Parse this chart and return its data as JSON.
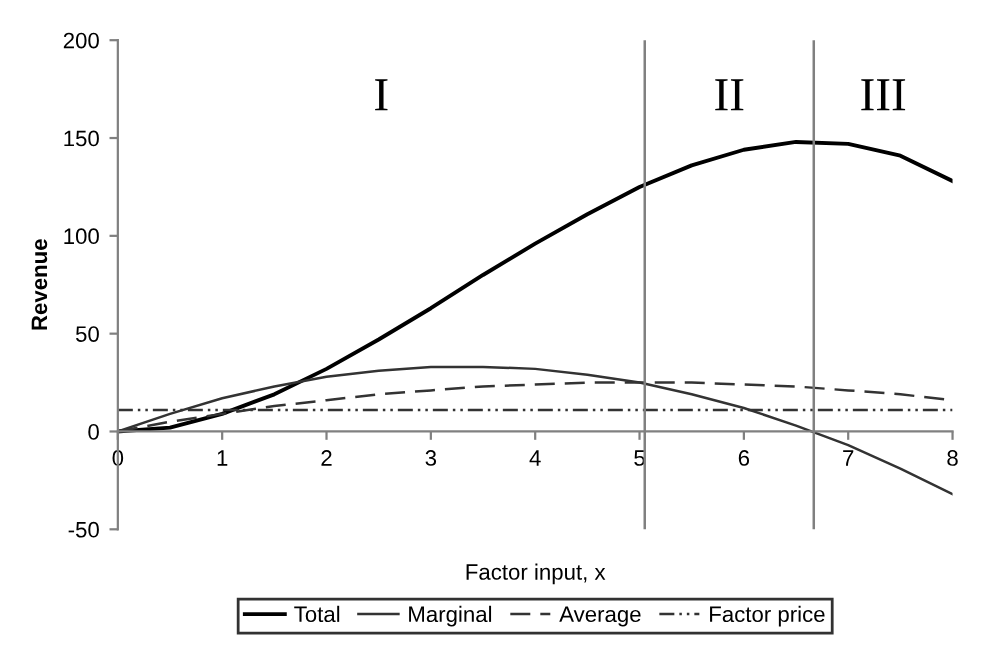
{
  "chart_data": {
    "type": "line",
    "xlabel": "Factor input, x",
    "ylabel": "Revenue",
    "x": [
      0,
      0.5,
      1,
      1.5,
      2,
      2.5,
      3,
      3.5,
      4,
      4.5,
      5,
      5.5,
      6,
      6.5,
      7,
      7.5,
      8
    ],
    "series": [
      {
        "name": "Total",
        "color": "#000000",
        "line_style": "solid",
        "values": [
          0,
          2,
          9,
          19,
          32,
          47,
          63,
          80,
          96,
          111,
          125,
          136,
          144,
          148,
          147,
          141,
          128
        ]
      },
      {
        "name": "Marginal",
        "color": "#333333",
        "line_style": "solid",
        "values": [
          0,
          9,
          17,
          23,
          28,
          31,
          33,
          33,
          32,
          29,
          25,
          19,
          12,
          3,
          -7,
          -19,
          -32
        ]
      },
      {
        "name": "Average",
        "color": "#333333",
        "line_style": "dashed",
        "values": [
          0,
          5,
          9,
          13,
          16,
          19,
          21,
          23,
          24,
          25,
          25,
          25,
          24,
          23,
          21,
          19,
          16
        ]
      },
      {
        "name": "Factor price",
        "color": "#333333",
        "line_style": "dashdotdot",
        "x": [
          0,
          8
        ],
        "values": [
          11,
          11
        ]
      }
    ],
    "xlim": [
      0,
      8
    ],
    "xticks": [
      0,
      1,
      2,
      3,
      4,
      5,
      6,
      7,
      8
    ],
    "ylim": [
      -50,
      200
    ],
    "yticks": [
      -50,
      0,
      50,
      100,
      150,
      200
    ],
    "ref_lines": [
      {
        "axis": "x",
        "value": 5.05,
        "color": "#808080"
      },
      {
        "axis": "x",
        "value": 6.67,
        "color": "#808080"
      }
    ],
    "annotations": [
      "I",
      "II",
      "III"
    ],
    "grid": false,
    "legend": "bottom",
    "marker": "none"
  }
}
